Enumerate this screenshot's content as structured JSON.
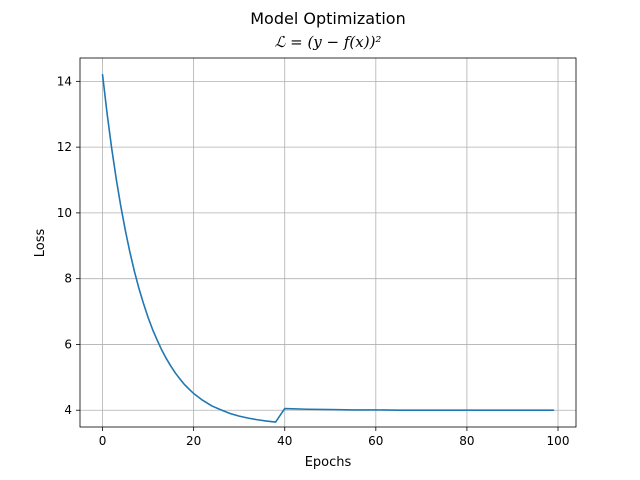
{
  "chart_data": {
    "type": "line",
    "title": "Model Optimization",
    "subtitle": "ℒ = (y − f(x))²",
    "xlabel": "Epochs",
    "ylabel": "Loss",
    "xlim": [
      -4.95,
      103.95
    ],
    "ylim": [
      3.49,
      14.71
    ],
    "xticks": [
      0,
      20,
      40,
      60,
      80,
      100
    ],
    "yticks": [
      4,
      6,
      8,
      10,
      12,
      14
    ],
    "grid": true,
    "color": "#1f77b4",
    "series": [
      {
        "values": [
          [
            0,
            14.2
          ],
          [
            1,
            13.02
          ],
          [
            2,
            11.97
          ],
          [
            3,
            11.04
          ],
          [
            4,
            10.21
          ],
          [
            5,
            9.47
          ],
          [
            6,
            8.81
          ],
          [
            7,
            8.22
          ],
          [
            8,
            7.7
          ],
          [
            9,
            7.24
          ],
          [
            10,
            6.82
          ],
          [
            11,
            6.45
          ],
          [
            12,
            6.13
          ],
          [
            13,
            5.83
          ],
          [
            14,
            5.57
          ],
          [
            15,
            5.34
          ],
          [
            16,
            5.13
          ],
          [
            17,
            4.95
          ],
          [
            18,
            4.78
          ],
          [
            19,
            4.64
          ],
          [
            20,
            4.51
          ],
          [
            22,
            4.3
          ],
          [
            24,
            4.13
          ],
          [
            26,
            4.01
          ],
          [
            28,
            3.9
          ],
          [
            30,
            3.82
          ],
          [
            32,
            3.76
          ],
          [
            34,
            3.71
          ],
          [
            36,
            3.67
          ],
          [
            38,
            3.64
          ],
          [
            40,
            4.05
          ],
          [
            45,
            4.03
          ],
          [
            50,
            4.02
          ],
          [
            55,
            4.01
          ],
          [
            60,
            4.01
          ],
          [
            65,
            4.0
          ],
          [
            70,
            4.0
          ],
          [
            80,
            4.0
          ],
          [
            90,
            4.0
          ],
          [
            99,
            4.0
          ]
        ]
      }
    ]
  }
}
